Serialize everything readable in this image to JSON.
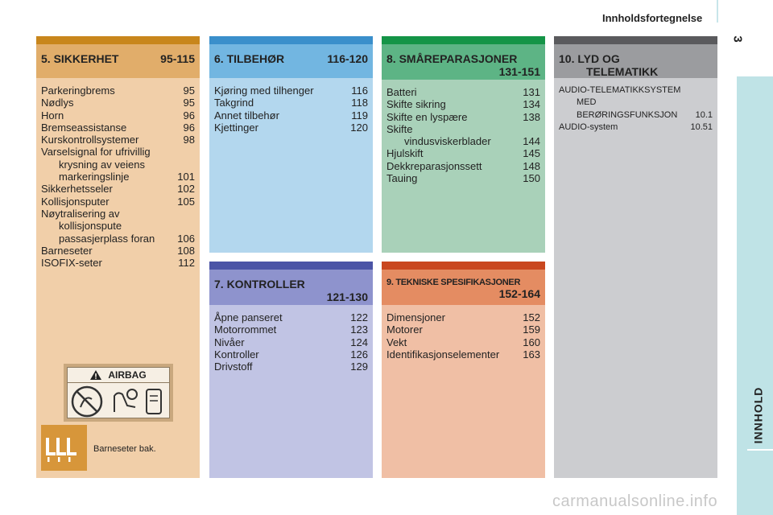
{
  "header": {
    "title": "Innholdsfortegnelse",
    "page_number": "3",
    "side_label": "INNHOLD"
  },
  "sections": {
    "s5": {
      "title": "5. SIKKERHET",
      "pages": "95-115",
      "color": "#f1cfa9",
      "bar_color": "#c8861c",
      "head_color": "#e1ad6a",
      "items": [
        {
          "label": "Parkeringbrems",
          "page": "95"
        },
        {
          "label": "Nødlys",
          "page": "95"
        },
        {
          "label": "Horn",
          "page": "96"
        },
        {
          "label": "Bremseassistanse",
          "page": "96"
        },
        {
          "label": "Kurskontrollsystemer",
          "page": "98"
        },
        {
          "label": "Varselsignal for ufrivillig",
          "page": ""
        },
        {
          "label": "krysning av veiens",
          "page": "",
          "indent": true
        },
        {
          "label": "markeringslinje",
          "page": "101",
          "indent": true
        },
        {
          "label": "Sikkerhetsseler",
          "page": "102"
        },
        {
          "label": "Kollisjonsputer",
          "page": "105"
        },
        {
          "label": "Nøytralisering av",
          "page": ""
        },
        {
          "label": "kollisjonspute",
          "page": "",
          "indent": true
        },
        {
          "label": "passasjerplass foran",
          "page": "106",
          "indent": true
        },
        {
          "label": "Barneseter",
          "page": "108"
        },
        {
          "label": "ISOFIX-seter",
          "page": "112"
        }
      ],
      "airbag_label": "AIRBAG",
      "caption": "Barneseter bak."
    },
    "s6": {
      "title": "6. TILBEHØR",
      "pages": "116-120",
      "color": "#b3d7ee",
      "bar_color": "#3a8fcb",
      "head_color": "#72b6e1",
      "items": [
        {
          "label": "Kjøring med tilhenger",
          "page": "116"
        },
        {
          "label": "Takgrind",
          "page": "118"
        },
        {
          "label": "Annet tilbehør",
          "page": "119"
        },
        {
          "label": "Kjettinger",
          "page": "120"
        }
      ]
    },
    "s7": {
      "title": "7. KONTROLLER",
      "pages": "121-130",
      "color": "#c1c4e4",
      "bar_color": "#4b54a6",
      "head_color": "#8e93cd",
      "items": [
        {
          "label": "Åpne panseret",
          "page": "122"
        },
        {
          "label": "Motorrommet",
          "page": "123"
        },
        {
          "label": "Nivåer",
          "page": "124"
        },
        {
          "label": "Kontroller",
          "page": "126"
        },
        {
          "label": "Drivstoff",
          "page": "129"
        }
      ]
    },
    "s8": {
      "title": "8. SMÅREPARASJONER",
      "pages": "131-151",
      "color": "#a9d1b9",
      "bar_color": "#149447",
      "head_color": "#5db485",
      "items": [
        {
          "label": "Batteri",
          "page": "131"
        },
        {
          "label": "Skifte sikring",
          "page": "134"
        },
        {
          "label": "Skifte en lyspære",
          "page": "138"
        },
        {
          "label": "Skifte",
          "page": ""
        },
        {
          "label": "vindusviskerblader",
          "page": "144",
          "indent": true
        },
        {
          "label": "Hjulskift",
          "page": "145"
        },
        {
          "label": "Dekkreparasjonssett",
          "page": "148"
        },
        {
          "label": "Tauing",
          "page": "150"
        }
      ]
    },
    "s9": {
      "title": "9. TEKNISKE SPESIFIKASJONER",
      "pages": "152-164",
      "color": "#f0bfa5",
      "bar_color": "#c9471f",
      "head_color": "#e48c62",
      "items": [
        {
          "label": "Dimensjoner",
          "page": "152"
        },
        {
          "label": "Motorer",
          "page": "159"
        },
        {
          "label": "Vekt",
          "page": "160"
        },
        {
          "label": "Identifikasjonselementer",
          "page": "163"
        }
      ]
    },
    "s10": {
      "title_line1": "10. LYD OG",
      "title_line2": "TELEMATIKK",
      "color": "#cccdd0",
      "bar_color": "#5a5a5d",
      "head_color": "#9b9c9f",
      "items": [
        {
          "label": "AUDIO-TELEMATIKKSYSTEM",
          "page": ""
        },
        {
          "label": "MED",
          "page": "",
          "indent": true
        },
        {
          "label": "BERØRINGSFUNKSJON",
          "page": "10.1",
          "indent": true
        },
        {
          "label": "AUDIO-system",
          "page": "10.51"
        }
      ]
    }
  },
  "watermark": "carmanualsonline.info"
}
